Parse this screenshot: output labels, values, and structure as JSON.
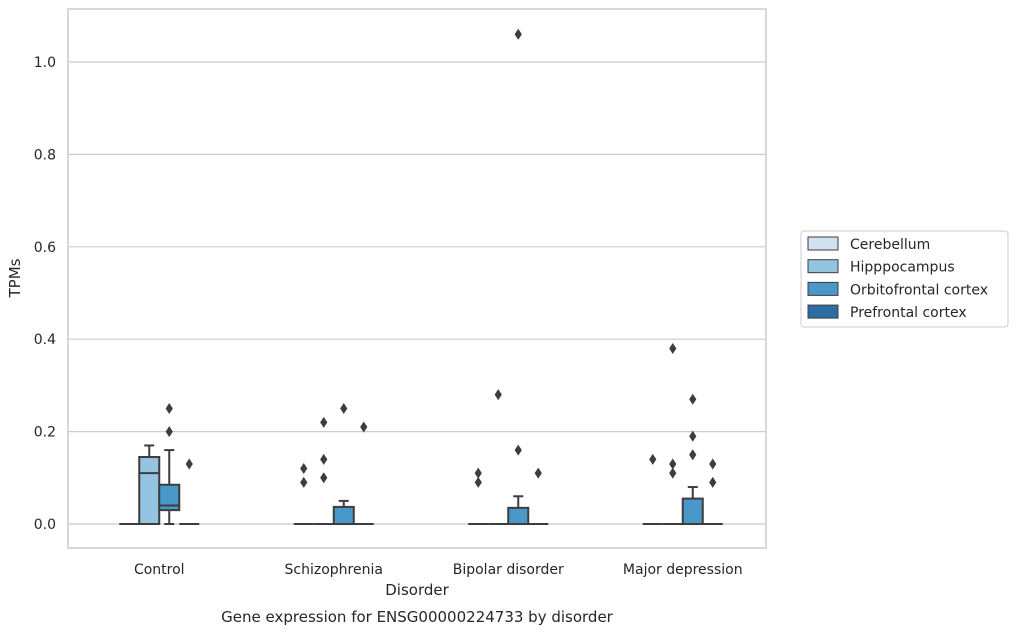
{
  "chart_data": {
    "type": "box",
    "title": "Gene expression for ENSG00000224733 by disorder",
    "xlabel": "Disorder",
    "ylabel": "TPMs",
    "ylim": [
      -0.05,
      1.12
    ],
    "yticks": [
      "0.0",
      "0.2",
      "0.4",
      "0.6",
      "0.8",
      "1.0"
    ],
    "grid": true,
    "legend_position": "right",
    "categories": [
      "Control",
      "Schizophrenia",
      "Bipolar disorder",
      "Major depression"
    ],
    "series": [
      {
        "name": "Cerebellum",
        "color": "#d0e1f2",
        "boxes": [
          {
            "q1": 0,
            "median": 0,
            "q3": 0,
            "whisker_low": 0,
            "whisker_high": 0,
            "outliers": []
          },
          {
            "q1": 0,
            "median": 0,
            "q3": 0,
            "whisker_low": 0,
            "whisker_high": 0,
            "outliers": [
              0.12,
              0.09
            ]
          },
          {
            "q1": 0,
            "median": 0,
            "q3": 0,
            "whisker_low": 0,
            "whisker_high": 0,
            "outliers": [
              0.11,
              0.09
            ]
          },
          {
            "q1": 0,
            "median": 0,
            "q3": 0,
            "whisker_low": 0,
            "whisker_high": 0,
            "outliers": [
              0.14
            ]
          }
        ]
      },
      {
        "name": "Hipppocampus",
        "color": "#94c4df",
        "boxes": [
          {
            "q1": 0,
            "median": 0.11,
            "q3": 0.145,
            "whisker_low": 0,
            "whisker_high": 0.17,
            "outliers": []
          },
          {
            "q1": 0,
            "median": 0,
            "q3": 0,
            "whisker_low": 0,
            "whisker_high": 0,
            "outliers": [
              0.22,
              0.14,
              0.1
            ]
          },
          {
            "q1": 0,
            "median": 0,
            "q3": 0,
            "whisker_low": 0,
            "whisker_high": 0,
            "outliers": [
              0.28
            ]
          },
          {
            "q1": 0,
            "median": 0,
            "q3": 0,
            "whisker_low": 0,
            "whisker_high": 0,
            "outliers": [
              0.38,
              0.13,
              0.11
            ]
          }
        ]
      },
      {
        "name": "Orbitofrontal cortex",
        "color": "#4a98c9",
        "boxes": [
          {
            "q1": 0.03,
            "median": 0.04,
            "q3": 0.085,
            "whisker_low": 0,
            "whisker_high": 0.16,
            "outliers": [
              0.25,
              0.2
            ]
          },
          {
            "q1": 0,
            "median": 0,
            "q3": 0.037,
            "whisker_low": 0,
            "whisker_high": 0.05,
            "outliers": [
              0.25
            ]
          },
          {
            "q1": 0,
            "median": 0,
            "q3": 0.035,
            "whisker_low": 0,
            "whisker_high": 0.06,
            "outliers": [
              1.06,
              0.16
            ]
          },
          {
            "q1": 0,
            "median": 0,
            "q3": 0.055,
            "whisker_low": 0,
            "whisker_high": 0.08,
            "outliers": [
              0.27,
              0.19,
              0.15
            ]
          }
        ]
      },
      {
        "name": "Prefrontal cortex",
        "color": "#2e6da4",
        "boxes": [
          {
            "q1": 0,
            "median": 0,
            "q3": 0,
            "whisker_low": 0,
            "whisker_high": 0,
            "outliers": [
              0.13
            ]
          },
          {
            "q1": 0,
            "median": 0,
            "q3": 0,
            "whisker_low": 0,
            "whisker_high": 0,
            "outliers": [
              0.21
            ]
          },
          {
            "q1": 0,
            "median": 0,
            "q3": 0,
            "whisker_low": 0,
            "whisker_high": 0,
            "outliers": [
              0.11
            ]
          },
          {
            "q1": 0,
            "median": 0,
            "q3": 0,
            "whisker_low": 0,
            "whisker_high": 0,
            "outliers": [
              0.13,
              0.09
            ]
          }
        ]
      }
    ]
  }
}
